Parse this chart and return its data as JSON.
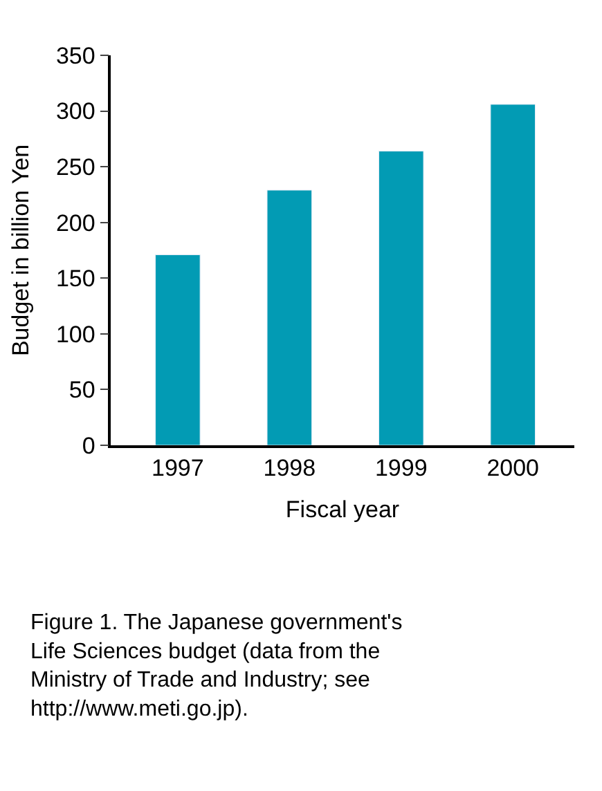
{
  "chart_data": {
    "type": "bar",
    "categories": [
      "1997",
      "1998",
      "1999",
      "2000"
    ],
    "values": [
      171,
      229,
      264,
      306
    ],
    "color": "#029bb4",
    "xlabel": "Fiscal year",
    "ylabel": "Budget in billion Yen",
    "ylim": [
      0,
      350
    ],
    "yticks": [
      0,
      50,
      100,
      150,
      200,
      250,
      300,
      350
    ],
    "legend": false,
    "annotations": [
      "Figure 1. The Japanese government's Life Sciences budget (data from the Ministry of Trade and Industry; see http://www.meti.go.jp)."
    ]
  }
}
